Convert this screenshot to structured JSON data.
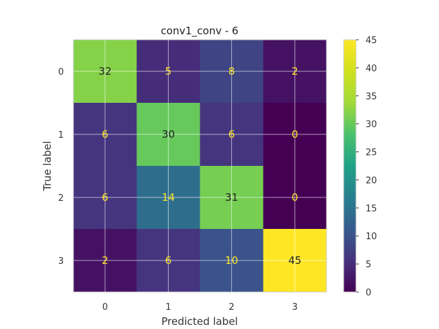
{
  "chart_data": {
    "type": "heatmap",
    "title": "conv1_conv - 6",
    "xlabel": "Predicted label",
    "ylabel": "True label",
    "x_categories": [
      "0",
      "1",
      "2",
      "3"
    ],
    "y_categories": [
      "0",
      "1",
      "2",
      "3"
    ],
    "matrix": [
      [
        32,
        5,
        8,
        2
      ],
      [
        6,
        30,
        6,
        0
      ],
      [
        6,
        14,
        31,
        0
      ],
      [
        2,
        6,
        10,
        45
      ]
    ],
    "colormap": "viridis",
    "vmin": 0,
    "vmax": 45,
    "colorbar_ticks": [
      0,
      5,
      10,
      15,
      20,
      25,
      30,
      35,
      40,
      45
    ],
    "text_color_dark_bg": "#fde725",
    "text_color_light_bg": "#222222",
    "grid": true
  }
}
